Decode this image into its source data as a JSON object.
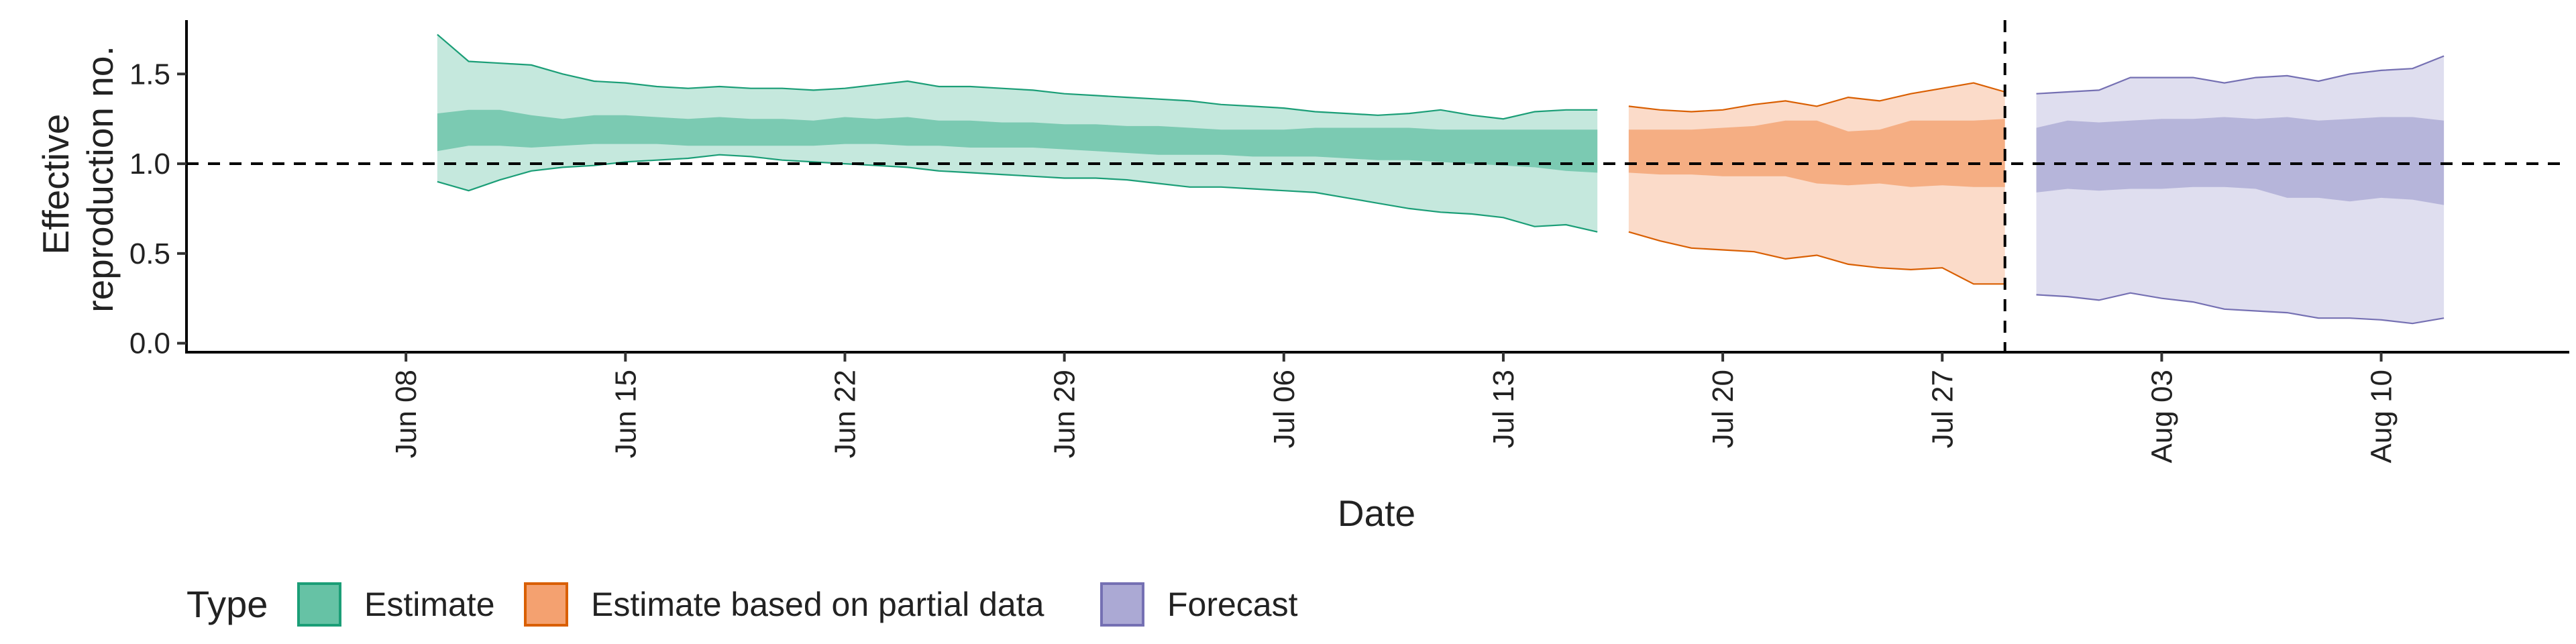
{
  "chart_data": {
    "type": "area",
    "xlabel": "Date",
    "ylabel": [
      "Effective",
      "reproduction no."
    ],
    "ylim": [
      -0.05,
      1.8
    ],
    "y_ticks": [
      0.0,
      0.5,
      1.0,
      1.5
    ],
    "x_tick_labels": [
      "Jun 08",
      "Jun 15",
      "Jun 22",
      "Jun 29",
      "Jul 06",
      "Jul 13",
      "Jul 20",
      "Jul 27",
      "Aug 03",
      "Aug 10"
    ],
    "x_tick_dates": [
      "2020-06-08",
      "2020-06-15",
      "2020-06-22",
      "2020-06-29",
      "2020-07-06",
      "2020-07-13",
      "2020-07-20",
      "2020-07-27",
      "2020-08-03",
      "2020-08-10"
    ],
    "xlim": [
      "2020-06-01",
      "2020-08-16"
    ],
    "reference_line_y": 1.0,
    "vertical_line_date": "2020-07-29",
    "legend": {
      "title": "Type",
      "position": "bottom",
      "entries": [
        {
          "label": "Estimate",
          "fill": "#66c2a5",
          "stroke": "#1b9e77"
        },
        {
          "label": "Estimate based on partial data",
          "fill": "#f4a170",
          "stroke": "#d95f02"
        },
        {
          "label": "Forecast",
          "fill": "#aba9d4",
          "stroke": "#7570b3"
        }
      ]
    },
    "series": [
      {
        "name": "Estimate",
        "color": "#1b9e77",
        "fill": "#66c2a5",
        "x": [
          "2020-06-09",
          "2020-06-10",
          "2020-06-11",
          "2020-06-12",
          "2020-06-13",
          "2020-06-14",
          "2020-06-15",
          "2020-06-16",
          "2020-06-17",
          "2020-06-18",
          "2020-06-19",
          "2020-06-20",
          "2020-06-21",
          "2020-06-22",
          "2020-06-23",
          "2020-06-24",
          "2020-06-25",
          "2020-06-26",
          "2020-06-27",
          "2020-06-28",
          "2020-06-29",
          "2020-06-30",
          "2020-07-01",
          "2020-07-02",
          "2020-07-03",
          "2020-07-04",
          "2020-07-05",
          "2020-07-06",
          "2020-07-07",
          "2020-07-08",
          "2020-07-09",
          "2020-07-10",
          "2020-07-11",
          "2020-07-12",
          "2020-07-13",
          "2020-07-14",
          "2020-07-15",
          "2020-07-16"
        ],
        "lower_90": [
          0.9,
          0.85,
          0.91,
          0.96,
          0.98,
          0.99,
          1.01,
          1.02,
          1.03,
          1.05,
          1.04,
          1.02,
          1.01,
          1.0,
          0.99,
          0.98,
          0.96,
          0.95,
          0.94,
          0.93,
          0.92,
          0.92,
          0.91,
          0.89,
          0.87,
          0.87,
          0.86,
          0.85,
          0.84,
          0.81,
          0.78,
          0.75,
          0.73,
          0.72,
          0.7,
          0.65,
          0.66,
          0.62
        ],
        "upper_90": [
          1.72,
          1.57,
          1.56,
          1.55,
          1.5,
          1.46,
          1.45,
          1.43,
          1.42,
          1.43,
          1.42,
          1.42,
          1.41,
          1.42,
          1.44,
          1.46,
          1.43,
          1.43,
          1.42,
          1.41,
          1.39,
          1.38,
          1.37,
          1.36,
          1.35,
          1.33,
          1.32,
          1.31,
          1.29,
          1.28,
          1.27,
          1.28,
          1.3,
          1.27,
          1.25,
          1.29,
          1.3,
          1.3
        ],
        "lower_50": [
          1.07,
          1.1,
          1.1,
          1.09,
          1.1,
          1.11,
          1.11,
          1.11,
          1.1,
          1.1,
          1.1,
          1.1,
          1.1,
          1.11,
          1.11,
          1.1,
          1.1,
          1.09,
          1.09,
          1.09,
          1.08,
          1.07,
          1.06,
          1.05,
          1.05,
          1.05,
          1.04,
          1.04,
          1.04,
          1.03,
          1.02,
          1.02,
          1.01,
          1.0,
          0.99,
          0.98,
          0.96,
          0.95
        ],
        "upper_50": [
          1.28,
          1.3,
          1.3,
          1.27,
          1.25,
          1.27,
          1.27,
          1.26,
          1.25,
          1.26,
          1.25,
          1.25,
          1.24,
          1.26,
          1.25,
          1.26,
          1.24,
          1.24,
          1.23,
          1.23,
          1.22,
          1.22,
          1.21,
          1.21,
          1.2,
          1.19,
          1.19,
          1.19,
          1.2,
          1.2,
          1.2,
          1.2,
          1.19,
          1.19,
          1.19,
          1.19,
          1.19,
          1.19
        ]
      },
      {
        "name": "Estimate based on partial data",
        "color": "#d95f02",
        "fill": "#f4a170",
        "x": [
          "2020-07-17",
          "2020-07-18",
          "2020-07-19",
          "2020-07-20",
          "2020-07-21",
          "2020-07-22",
          "2020-07-23",
          "2020-07-24",
          "2020-07-25",
          "2020-07-26",
          "2020-07-27",
          "2020-07-28",
          "2020-07-29"
        ],
        "lower_90": [
          0.62,
          0.57,
          0.53,
          0.52,
          0.51,
          0.47,
          0.49,
          0.44,
          0.42,
          0.41,
          0.42,
          0.33,
          0.33
        ],
        "upper_90": [
          1.32,
          1.3,
          1.29,
          1.3,
          1.33,
          1.35,
          1.32,
          1.37,
          1.35,
          1.39,
          1.42,
          1.45,
          1.4
        ],
        "lower_50": [
          0.95,
          0.94,
          0.94,
          0.93,
          0.93,
          0.93,
          0.89,
          0.88,
          0.89,
          0.87,
          0.88,
          0.87,
          0.87
        ],
        "upper_50": [
          1.19,
          1.19,
          1.19,
          1.2,
          1.21,
          1.24,
          1.24,
          1.18,
          1.19,
          1.24,
          1.24,
          1.24,
          1.25
        ]
      },
      {
        "name": "Forecast",
        "color": "#7570b3",
        "fill": "#aba9d4",
        "x": [
          "2020-07-30",
          "2020-07-31",
          "2020-08-01",
          "2020-08-02",
          "2020-08-03",
          "2020-08-04",
          "2020-08-05",
          "2020-08-06",
          "2020-08-07",
          "2020-08-08",
          "2020-08-09",
          "2020-08-10",
          "2020-08-11",
          "2020-08-12"
        ],
        "lower_90": [
          0.27,
          0.26,
          0.24,
          0.28,
          0.25,
          0.23,
          0.19,
          0.18,
          0.17,
          0.14,
          0.14,
          0.13,
          0.11,
          0.14
        ],
        "upper_90": [
          1.39,
          1.4,
          1.41,
          1.48,
          1.48,
          1.48,
          1.45,
          1.48,
          1.49,
          1.46,
          1.5,
          1.52,
          1.53,
          1.6
        ],
        "lower_50": [
          0.84,
          0.86,
          0.85,
          0.86,
          0.86,
          0.87,
          0.87,
          0.86,
          0.81,
          0.81,
          0.79,
          0.81,
          0.8,
          0.77
        ],
        "upper_50": [
          1.2,
          1.24,
          1.23,
          1.24,
          1.25,
          1.25,
          1.26,
          1.25,
          1.26,
          1.24,
          1.25,
          1.26,
          1.26,
          1.24
        ]
      }
    ]
  }
}
